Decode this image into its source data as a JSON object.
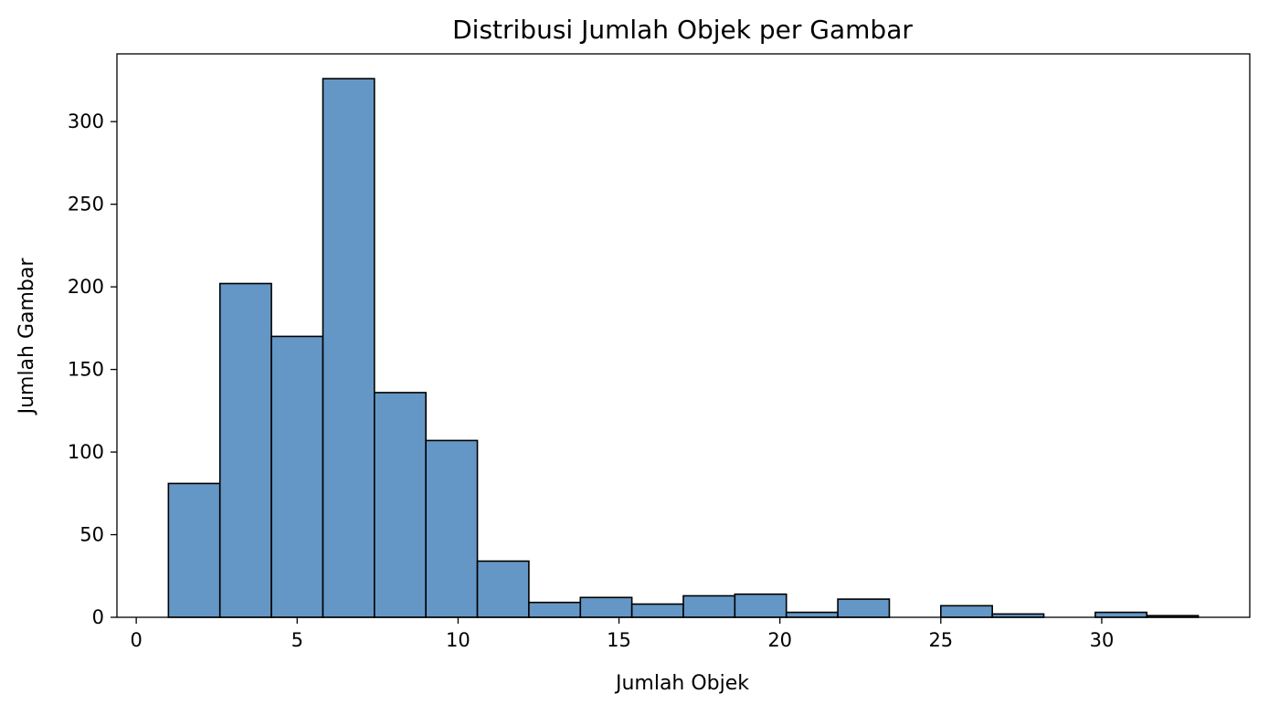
{
  "chart_data": {
    "type": "bar",
    "title": "Distribusi Jumlah Objek per Gambar",
    "xlabel": "Jumlah Objek",
    "ylabel": "Jumlah Gambar",
    "xlim": [
      -0.6,
      34.6
    ],
    "ylim": [
      0,
      341
    ],
    "xticks": [
      0,
      5,
      10,
      15,
      20,
      25,
      30
    ],
    "yticks": [
      0,
      50,
      100,
      150,
      200,
      250,
      300
    ],
    "grid": false,
    "legend": "none",
    "bar_color": "#6497c6",
    "edge_color": "#000000",
    "bins": [
      {
        "x0": 1.0,
        "x1": 2.6,
        "value": 81
      },
      {
        "x0": 2.6,
        "x1": 4.2,
        "value": 202
      },
      {
        "x0": 4.2,
        "x1": 5.8,
        "value": 170
      },
      {
        "x0": 5.8,
        "x1": 7.4,
        "value": 326
      },
      {
        "x0": 7.4,
        "x1": 9.0,
        "value": 136
      },
      {
        "x0": 9.0,
        "x1": 10.6,
        "value": 107
      },
      {
        "x0": 10.6,
        "x1": 12.2,
        "value": 34
      },
      {
        "x0": 12.2,
        "x1": 13.8,
        "value": 9
      },
      {
        "x0": 13.8,
        "x1": 15.4,
        "value": 12
      },
      {
        "x0": 15.4,
        "x1": 17.0,
        "value": 8
      },
      {
        "x0": 17.0,
        "x1": 18.6,
        "value": 13
      },
      {
        "x0": 18.6,
        "x1": 20.2,
        "value": 14
      },
      {
        "x0": 20.2,
        "x1": 21.8,
        "value": 3
      },
      {
        "x0": 21.8,
        "x1": 23.4,
        "value": 11
      },
      {
        "x0": 23.4,
        "x1": 25.0,
        "value": 0
      },
      {
        "x0": 25.0,
        "x1": 26.6,
        "value": 7
      },
      {
        "x0": 26.6,
        "x1": 28.2,
        "value": 2
      },
      {
        "x0": 28.2,
        "x1": 29.8,
        "value": 0
      },
      {
        "x0": 29.8,
        "x1": 31.4,
        "value": 3
      },
      {
        "x0": 31.4,
        "x1": 33.0,
        "value": 1
      }
    ]
  }
}
